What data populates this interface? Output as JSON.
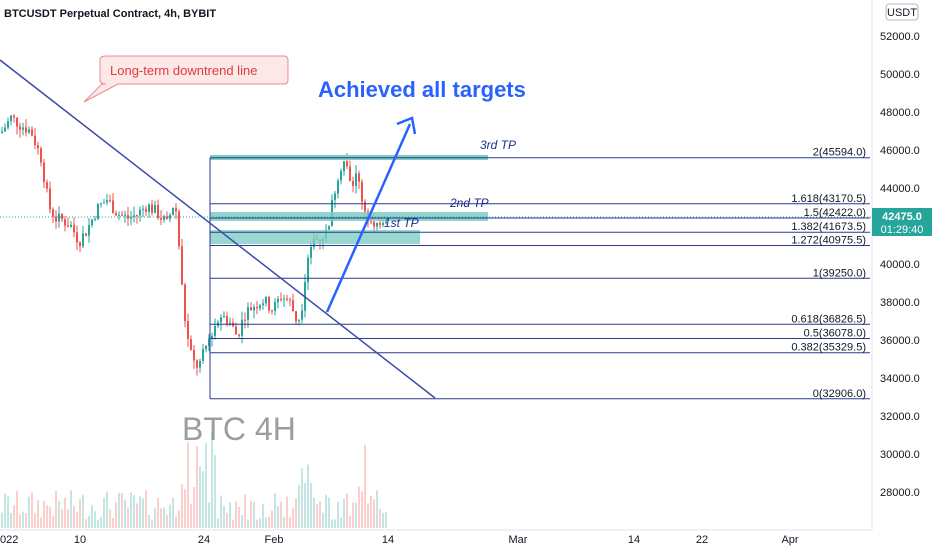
{
  "header": {
    "title": "BTCUSDT Perpetual Contract, 4h, BYBIT",
    "currency": "USDT"
  },
  "colors": {
    "up": "#26a69a",
    "down": "#ef5350",
    "line": "#3b4aa8",
    "fib_line": "#2a3a8f",
    "tp_band": "#7fcdc4",
    "arrow": "#2962ff",
    "label_red": "#e03b3b"
  },
  "annotations": {
    "callout": "Long-term downtrend line",
    "headline": "Achieved all targets",
    "watermark": "BTC 4H",
    "tp1": "1st TP",
    "tp2": "2nd TP",
    "tp3": "3rd TP"
  },
  "price_tag": {
    "price": "42475.0",
    "countdown": "01:29:40"
  },
  "chart_data": {
    "type": "candlestick",
    "y_axis": {
      "ticks": [
        "52000.0",
        "50000.0",
        "48000.0",
        "46000.0",
        "44000.0",
        "42000.0",
        "40000.0",
        "38000.0",
        "36000.0",
        "34000.0",
        "32000.0",
        "30000.0",
        "28000.0"
      ],
      "ylim": [
        26000,
        53000
      ]
    },
    "x_axis": {
      "ticks": [
        "022",
        "10",
        "24",
        "Feb",
        "14",
        "Mar",
        "14",
        "22",
        "Apr"
      ]
    },
    "fib_levels": [
      {
        "label": "2(45594.0)",
        "value": 45594.0
      },
      {
        "label": "1.618(43170.5)",
        "value": 43170.5
      },
      {
        "label": "1.5(42422.0)",
        "value": 42422.0
      },
      {
        "label": "1.382(41673.5)",
        "value": 41673.5
      },
      {
        "label": "1.272(40975.5)",
        "value": 40975.5
      },
      {
        "label": "1(39250.0)",
        "value": 39250.0
      },
      {
        "label": "0.618(36826.5)",
        "value": 36826.5
      },
      {
        "label": "0.5(36078.0)",
        "value": 36078.0
      },
      {
        "label": "0.382(35329.5)",
        "value": 35329.5
      },
      {
        "label": "0(32906.0)",
        "value": 32906.0
      }
    ],
    "last_price": 42475.0
  }
}
